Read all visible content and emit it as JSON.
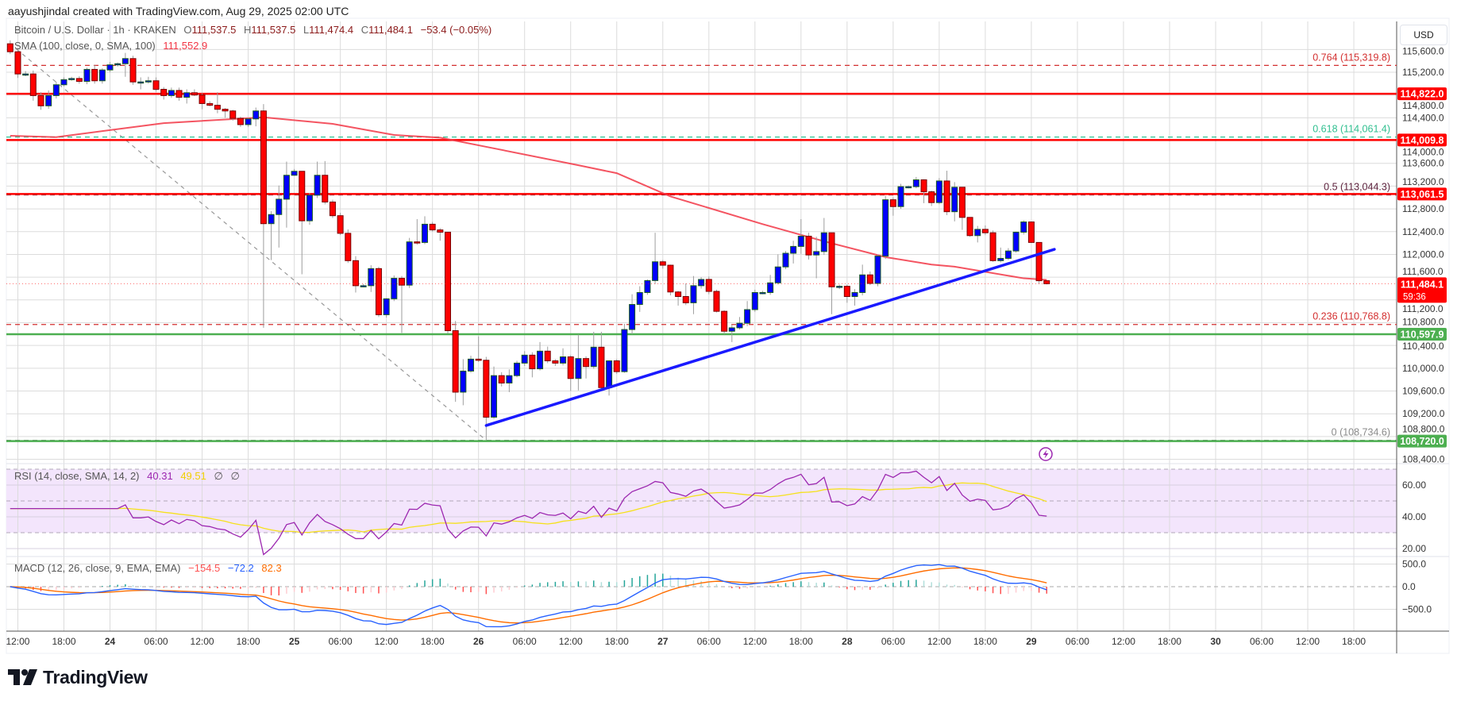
{
  "header": {
    "attribution": "aayushjindal created with TradingView.com, Aug 29, 2025 02:00 UTC"
  },
  "legend": {
    "symbol": "Bitcoin / U.S. Dollar · 1h · KRAKEN",
    "open_label": "O",
    "open": "111,537.5",
    "high_label": "H",
    "high": "111,537.5",
    "low_label": "L",
    "low": "111,474.4",
    "close_label": "C",
    "close": "111,484.1",
    "change": "−53.4 (−0.05%)",
    "sma_label": "SMA (100, close, 0, SMA, 100)",
    "sma_value": "111,552.9"
  },
  "rsi": {
    "label": "RSI (14, close, SMA, 14, 2)",
    "value": "40.31",
    "sma_value": "49.51",
    "extra1": "∅",
    "extra2": "∅",
    "ticks": [
      "60.00",
      "40.00",
      "20.00"
    ]
  },
  "macd": {
    "label": "MACD (12, 26, close, 9, EMA, EMA)",
    "hist": "−154.5",
    "macd": "−72.2",
    "signal": "82.3",
    "ticks": [
      "500.0",
      "0.0",
      "−500.0"
    ]
  },
  "price_axis": {
    "currency": "USD",
    "ticks": [
      "108,400.0",
      "108,800.0",
      "109,200.0",
      "109,600.0",
      "110,000.0",
      "110,400.0",
      "110,800.0",
      "111,200.0",
      "111,600.0",
      "112,000.0",
      "112,400.0",
      "112,800.0",
      "113,200.0",
      "113,600.0",
      "114,000.0",
      "114,400.0",
      "114,800.0",
      "115,200.0",
      "115,600.0"
    ],
    "last_price": "111,484.1",
    "countdown": "59:36"
  },
  "levels": [
    {
      "label": "114,822.0",
      "value": 114822.0,
      "color": "#ff0000"
    },
    {
      "label": "114,009.8",
      "value": 114009.8,
      "color": "#ff0000"
    },
    {
      "label": "113,061.5",
      "value": 113061.5,
      "color": "#ff0000"
    },
    {
      "label": "110,597.9",
      "value": 110597.9,
      "color": "#4caf50"
    },
    {
      "label": "108,720.0",
      "value": 108720.0,
      "color": "#4caf50"
    }
  ],
  "fib": [
    {
      "label": "0.764 (115,319.8)",
      "value": 115319.8,
      "color": "#d32f2f"
    },
    {
      "label": "0.618 (114,061.4)",
      "value": 114061.4,
      "color": "#2fbf8f"
    },
    {
      "label": "0.5 (113,044.3)",
      "value": 113044.3,
      "color": "#5b1f3a"
    },
    {
      "label": "0.236 (110,768.8)",
      "value": 110768.8,
      "color": "#d32f2f"
    },
    {
      "label": "0 (108,734.6)",
      "value": 108734.6,
      "color": "#8a8a8a"
    }
  ],
  "time_axis": {
    "labels": [
      "12:00",
      "18:00",
      "24",
      "06:00",
      "12:00",
      "18:00",
      "25",
      "06:00",
      "12:00",
      "18:00",
      "26",
      "06:00",
      "12:00",
      "18:00",
      "27",
      "06:00",
      "12:00",
      "18:00",
      "28",
      "06:00",
      "12:00",
      "18:00",
      "29",
      "06:00",
      "12:00",
      "18:00",
      "30",
      "06:00",
      "12:00",
      "18:00"
    ]
  },
  "logo": "TradingView",
  "icons": {
    "event": "lightning-icon",
    "logo": "tradingview-logo-icon"
  },
  "colors": {
    "up": "#0000ff",
    "up_border": "#1b5e20",
    "down": "#ff0000",
    "down_border": "#7a0000",
    "sma": "#f23645",
    "trendline": "#1a1aff",
    "rsi": "#9c27b0",
    "rsi_sma": "#f5e11b",
    "rsi_band": "#f3e5fc",
    "macd": "#2962ff",
    "signal": "#ff6d00"
  },
  "chart_data": {
    "type": "candlestick",
    "title": "Bitcoin / U.S. Dollar · 1h · KRAKEN",
    "interval": "1h",
    "first_bar": "08-23 11:00",
    "y_range": [
      108300,
      115750
    ],
    "grid": true,
    "ohlc": [
      [
        115700,
        115760,
        115520,
        115560
      ],
      [
        115560,
        115600,
        115100,
        115170
      ],
      [
        115170,
        115220,
        115130,
        115170
      ],
      [
        115170,
        115230,
        114700,
        114790
      ],
      [
        114790,
        114850,
        114540,
        114610
      ],
      [
        114610,
        114880,
        114560,
        114790
      ],
      [
        114790,
        115030,
        114740,
        114980
      ],
      [
        114980,
        115110,
        114950,
        115070
      ],
      [
        115070,
        115120,
        115050,
        115090
      ],
      [
        115090,
        115130,
        115000,
        115040
      ],
      [
        115040,
        115280,
        114990,
        115250
      ],
      [
        115250,
        115330,
        115000,
        115050
      ],
      [
        115050,
        115270,
        115000,
        115240
      ],
      [
        115240,
        115380,
        115200,
        115330
      ],
      [
        115330,
        115370,
        115300,
        115350
      ],
      [
        115350,
        115540,
        115120,
        115440
      ],
      [
        115440,
        115490,
        114980,
        115030
      ],
      [
        115030,
        115110,
        114900,
        115030
      ],
      [
        115030,
        115120,
        115000,
        115050
      ],
      [
        115050,
        115110,
        114860,
        114900
      ],
      [
        114900,
        114940,
        114720,
        114790
      ],
      [
        114790,
        114930,
        114750,
        114880
      ],
      [
        114880,
        114930,
        114700,
        114760
      ],
      [
        114760,
        114900,
        114650,
        114840
      ],
      [
        114840,
        114900,
        114780,
        114800
      ],
      [
        114800,
        114830,
        114550,
        114650
      ],
      [
        114650,
        114690,
        114600,
        114620
      ],
      [
        114620,
        114850,
        114480,
        114550
      ],
      [
        114550,
        114570,
        114400,
        114520
      ],
      [
        114520,
        114540,
        114350,
        114390
      ],
      [
        114390,
        114420,
        114240,
        114280
      ],
      [
        114280,
        114400,
        114240,
        114380
      ],
      [
        114380,
        114580,
        114250,
        114520
      ],
      [
        114520,
        114640,
        110710,
        112540
      ],
      [
        112540,
        112760,
        111900,
        112700
      ],
      [
        112700,
        113210,
        112120,
        112970
      ],
      [
        112970,
        113630,
        112470,
        113390
      ],
      [
        113390,
        113500,
        113380,
        113460
      ],
      [
        113460,
        113460,
        111650,
        112590
      ],
      [
        112590,
        113080,
        112520,
        113040
      ],
      [
        113040,
        113630,
        112990,
        113390
      ],
      [
        113390,
        113640,
        112880,
        112920
      ],
      [
        112920,
        112960,
        112640,
        112680
      ],
      [
        112680,
        112730,
        112340,
        112370
      ],
      [
        112370,
        112440,
        111850,
        111890
      ],
      [
        111890,
        111970,
        111330,
        111450
      ],
      [
        111450,
        111480,
        111420,
        111450
      ],
      [
        111450,
        111810,
        111340,
        111750
      ],
      [
        111750,
        111780,
        110900,
        110940
      ],
      [
        110940,
        111230,
        110890,
        111220
      ],
      [
        111220,
        111630,
        111180,
        111580
      ],
      [
        111580,
        111620,
        110620,
        111460
      ],
      [
        111460,
        112290,
        111410,
        112220
      ],
      [
        112220,
        112620,
        112170,
        112210
      ],
      [
        112210,
        112670,
        112180,
        112530
      ],
      [
        112530,
        112570,
        112400,
        112430
      ],
      [
        112430,
        112460,
        112240,
        112390
      ],
      [
        112390,
        112390,
        110610,
        110660
      ],
      [
        110660,
        110830,
        109410,
        109580
      ],
      [
        109580,
        110160,
        109350,
        109950
      ],
      [
        109950,
        110220,
        109920,
        110160
      ],
      [
        110160,
        110560,
        110110,
        110140
      ],
      [
        110140,
        110200,
        108735,
        109140
      ],
      [
        109140,
        110030,
        109110,
        109870
      ],
      [
        109870,
        109930,
        109680,
        109740
      ],
      [
        109740,
        109980,
        109580,
        109870
      ],
      [
        109870,
        110130,
        109840,
        110090
      ],
      [
        110090,
        110300,
        110040,
        110230
      ],
      [
        110230,
        110280,
        109840,
        109990
      ],
      [
        109990,
        110460,
        109960,
        110300
      ],
      [
        110300,
        110380,
        110090,
        110130
      ],
      [
        110130,
        110160,
        110040,
        110090
      ],
      [
        110090,
        110350,
        110050,
        110200
      ],
      [
        110200,
        110230,
        109600,
        109820
      ],
      [
        109820,
        110590,
        109610,
        110170
      ],
      [
        110170,
        110210,
        109820,
        110030
      ],
      [
        110030,
        110640,
        109990,
        110370
      ],
      [
        110370,
        110640,
        109620,
        109660
      ],
      [
        109660,
        110140,
        109520,
        110130
      ],
      [
        110130,
        110160,
        109900,
        109940
      ],
      [
        109940,
        110780,
        109920,
        110680
      ],
      [
        110680,
        111300,
        110600,
        111120
      ],
      [
        111120,
        111440,
        110990,
        111330
      ],
      [
        111330,
        111560,
        111290,
        111540
      ],
      [
        111540,
        112380,
        111480,
        111870
      ],
      [
        111870,
        111900,
        111750,
        111810
      ],
      [
        111810,
        111820,
        111280,
        111340
      ],
      [
        111340,
        111360,
        111100,
        111260
      ],
      [
        111260,
        111490,
        111110,
        111150
      ],
      [
        111150,
        111620,
        110950,
        111450
      ],
      [
        111450,
        111600,
        111400,
        111560
      ],
      [
        111560,
        111610,
        111300,
        111350
      ],
      [
        111350,
        111380,
        110980,
        111000
      ],
      [
        111000,
        111020,
        110600,
        110650
      ],
      [
        110650,
        110770,
        110460,
        110710
      ],
      [
        110710,
        110900,
        110680,
        110790
      ],
      [
        110790,
        111180,
        110740,
        111030
      ],
      [
        111030,
        111380,
        110990,
        111330
      ],
      [
        111330,
        111360,
        111300,
        111330
      ],
      [
        111330,
        111640,
        111290,
        111500
      ],
      [
        111500,
        112000,
        111470,
        111780
      ],
      [
        111780,
        112060,
        111740,
        112020
      ],
      [
        112020,
        112240,
        111840,
        112140
      ],
      [
        112140,
        112620,
        112010,
        112320
      ],
      [
        112320,
        112380,
        111910,
        111990
      ],
      [
        111990,
        112310,
        111580,
        112050
      ],
      [
        112050,
        112640,
        111990,
        112380
      ],
      [
        112380,
        112380,
        110950,
        111430
      ],
      [
        111430,
        111470,
        111390,
        111440
      ],
      [
        111440,
        111470,
        111150,
        111260
      ],
      [
        111260,
        111390,
        111100,
        111330
      ],
      [
        111330,
        111820,
        111280,
        111640
      ],
      [
        111640,
        111700,
        111460,
        111490
      ],
      [
        111490,
        112000,
        111440,
        111970
      ],
      [
        111970,
        113030,
        111920,
        112960
      ],
      [
        112960,
        113000,
        112680,
        112840
      ],
      [
        112840,
        113240,
        112800,
        113190
      ],
      [
        113190,
        113210,
        113160,
        113190
      ],
      [
        113190,
        113360,
        113160,
        113310
      ],
      [
        113310,
        113320,
        112900,
        113100
      ],
      [
        113100,
        113120,
        112850,
        112910
      ],
      [
        112910,
        113340,
        112880,
        113290
      ],
      [
        113290,
        113470,
        112690,
        112750
      ],
      [
        112750,
        113270,
        112580,
        113180
      ],
      [
        113180,
        113180,
        112430,
        112650
      ],
      [
        112650,
        112650,
        112310,
        112330
      ],
      [
        112330,
        112500,
        112210,
        112440
      ],
      [
        112440,
        112510,
        112340,
        112380
      ],
      [
        112380,
        112420,
        111870,
        111890
      ],
      [
        111890,
        112120,
        111860,
        111930
      ],
      [
        111930,
        112110,
        111900,
        112060
      ],
      [
        112060,
        112400,
        112030,
        112390
      ],
      [
        112390,
        112600,
        112350,
        112570
      ],
      [
        112570,
        112570,
        112200,
        112210
      ],
      [
        112210,
        112210,
        111480,
        111537.5
      ],
      [
        111537.5,
        111537.5,
        111474.4,
        111484.1
      ]
    ],
    "sma100": [
      [
        "08-23 11:00",
        114084
      ],
      [
        "08-23 17:00",
        114060
      ],
      [
        "08-24 07:00",
        114306
      ],
      [
        "08-24 20:00",
        114409
      ],
      [
        "08-25 05:00",
        114293
      ],
      [
        "08-25 13:00",
        114098
      ],
      [
        "08-25 19:00",
        114051
      ],
      [
        "08-26 01:00",
        113890
      ],
      [
        "08-26 13:00",
        113566
      ],
      [
        "08-26 18:00",
        113427
      ],
      [
        "08-27 01:00",
        113018
      ],
      [
        "08-27 13:00",
        112532
      ],
      [
        "08-27 21:00",
        112230
      ],
      [
        "08-28 05:00",
        111952
      ],
      [
        "08-28 11:00",
        111822
      ],
      [
        "08-28 14:00",
        111785
      ],
      [
        "08-28 23:00",
        111580
      ],
      [
        "08-29 02:00",
        111553
      ]
    ],
    "trendline": [
      [
        "08-26 01:00",
        108994
      ],
      [
        "08-29 03:00",
        112089
      ]
    ],
    "fib_anchor": [
      [
        "08-23 11:00",
        115700
      ],
      [
        "08-26 01:00",
        108735
      ]
    ]
  }
}
